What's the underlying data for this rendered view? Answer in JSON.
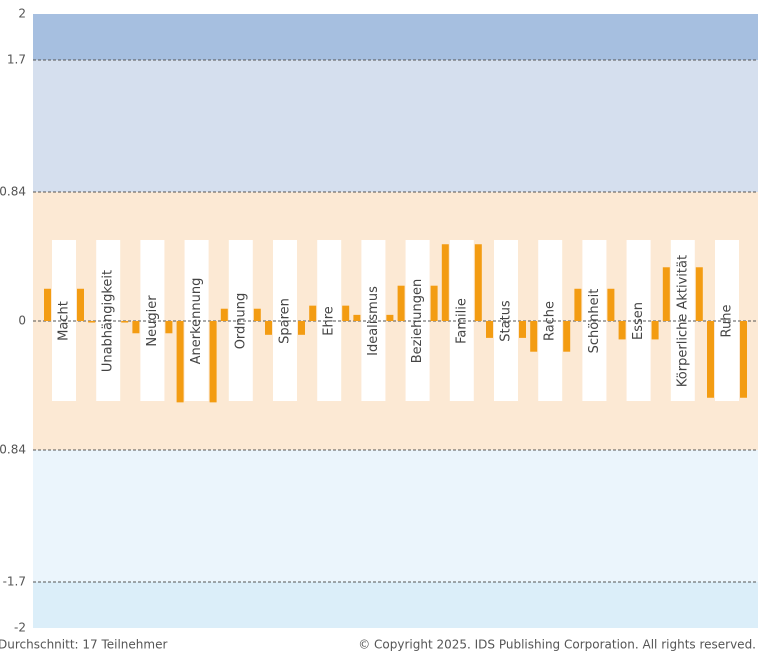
{
  "chart_data": {
    "type": "bar",
    "categories": [
      "Macht",
      "Unabhängigkeit",
      "Neugier",
      "Anerkennung",
      "Ordnung",
      "Sparen",
      "Ehre",
      "Idealismus",
      "Beziehungen",
      "Familie",
      "Status",
      "Rache",
      "Schönheit",
      "Essen",
      "Körperliche Aktivität",
      "Ruhe"
    ],
    "series": [
      {
        "color": "#f39c12",
        "values": [
          0.21,
          -0.01,
          -0.08,
          -0.53,
          0.08,
          -0.09,
          0.1,
          0.04,
          0.23,
          0.5,
          -0.11,
          -0.2,
          0.21,
          -0.12,
          0.35,
          -0.5
        ]
      },
      {
        "color": "#f39c12",
        "values": [
          0.21,
          -0.01,
          -0.08,
          -0.53,
          0.08,
          -0.09,
          0.1,
          0.04,
          0.23,
          0.5,
          -0.11,
          -0.2,
          0.21,
          -0.12,
          0.35,
          -0.5
        ]
      }
    ],
    "ylim": [
      -2,
      2
    ],
    "yticks": [
      2,
      1.7,
      0.84,
      0,
      -0.84,
      -1.7,
      -2
    ],
    "grid": true,
    "bands": [
      {
        "from": 1.7,
        "to": 2,
        "color": "#a6bfe0"
      },
      {
        "from": 0.84,
        "to": 1.7,
        "color": "#d5dfee"
      },
      {
        "from": -0.84,
        "to": 0.84,
        "color": "#fce9d4"
      },
      {
        "from": -1.7,
        "to": -0.84,
        "color": "#ebf5fc"
      },
      {
        "from": -2,
        "to": -1.7,
        "color": "#dbeef9"
      }
    ],
    "footnote": "Durchschnitt: 17 Teilnehmer",
    "copyright": "© Copyright 2025. IDS Publishing Corporation. All rights reserved."
  }
}
